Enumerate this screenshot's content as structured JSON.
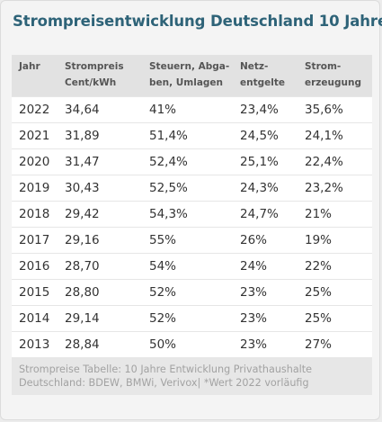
{
  "title": "Strompreisentwicklung Deutschland 10 Jahre",
  "table": {
    "headers": [
      "Jahr",
      "Strompreis\nCent/kWh",
      "Steuern, Abga-\nben, Umlagen",
      "Netz-\nentgelte",
      "Strom-\nerzeugung"
    ],
    "rows": [
      [
        "2022",
        "34,64",
        "41%",
        "23,4%",
        "35,6%"
      ],
      [
        "2021",
        "31,89",
        "51,4%",
        "24,5%",
        "24,1%"
      ],
      [
        "2020",
        "31,47",
        "52,4%",
        "25,1%",
        "22,4%"
      ],
      [
        "2019",
        "30,43",
        "52,5%",
        "24,3%",
        "23,2%"
      ],
      [
        "2018",
        "29,42",
        "54,3%",
        "24,7%",
        "21%"
      ],
      [
        "2017",
        "29,16",
        "55%",
        "26%",
        "19%"
      ],
      [
        "2016",
        "28,70",
        "54%",
        "24%",
        "22%"
      ],
      [
        "2015",
        "28,80",
        "52%",
        "23%",
        "25%"
      ],
      [
        "2014",
        "29,14",
        "52%",
        "23%",
        "25%"
      ],
      [
        "2013",
        "28,84",
        "50%",
        "23%",
        "27%"
      ]
    ]
  },
  "caption": {
    "line1": "Strompreise Tabelle: 10 Jahre Entwicklung Privathaushalte",
    "line2": "Deutschland: BDEW, BMWi, Verivox| *Wert 2022 vorläufig"
  }
}
